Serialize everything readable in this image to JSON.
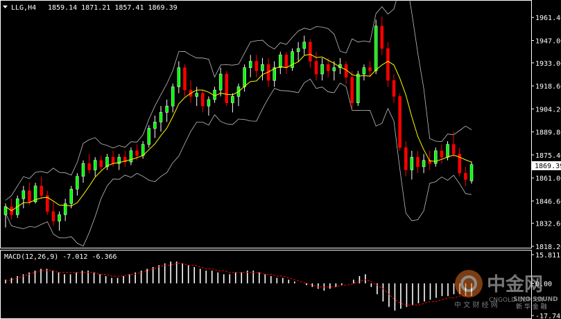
{
  "header": {
    "symbol_timeframe": "LLG,H4",
    "ohlc": "1859.14 1871.21 1857.41 1869.39"
  },
  "price_axis": {
    "ticks": [
      "1961.40",
      "1947.00",
      "1933.00",
      "1918.60",
      "1904.20",
      "1889.80",
      "1875.40",
      "1861.00",
      "1846.60",
      "1832.60",
      "1818.20"
    ],
    "current_price": "1869.39"
  },
  "macd": {
    "title": "MACD(12,26,9) -7.012 -6.366",
    "ticks": [
      "15.811",
      "0.00",
      "-17.745"
    ]
  },
  "watermark": {
    "brand": "中金网",
    "url": "CNGOLD.COM.CN",
    "tagline": "中 文 财 经 网",
    "logo_text": "SINO SOUND",
    "logo_sub": "新 华 金 融"
  },
  "colors": {
    "background": "#000000",
    "bull": "#ffffff",
    "bear": "#ff0000",
    "bull_body": "#00ff00",
    "ma": "#ffff00",
    "bollinger": "#c0c0c0",
    "macd_signal": "#ff0000",
    "grid": "#ffffff"
  },
  "chart_data": {
    "type": "candlestick",
    "ylim": [
      1818.2,
      1968
    ],
    "candles": [
      {
        "o": 1838,
        "h": 1845,
        "l": 1830,
        "c": 1843
      },
      {
        "o": 1843,
        "h": 1848,
        "l": 1835,
        "c": 1838
      },
      {
        "o": 1838,
        "h": 1850,
        "l": 1836,
        "c": 1848
      },
      {
        "o": 1848,
        "h": 1856,
        "l": 1842,
        "c": 1853
      },
      {
        "o": 1853,
        "h": 1858,
        "l": 1844,
        "c": 1846
      },
      {
        "o": 1846,
        "h": 1858,
        "l": 1845,
        "c": 1856
      },
      {
        "o": 1856,
        "h": 1862,
        "l": 1848,
        "c": 1850
      },
      {
        "o": 1850,
        "h": 1853,
        "l": 1838,
        "c": 1840
      },
      {
        "o": 1840,
        "h": 1846,
        "l": 1831,
        "c": 1834
      },
      {
        "o": 1834,
        "h": 1840,
        "l": 1828,
        "c": 1838
      },
      {
        "o": 1838,
        "h": 1848,
        "l": 1834,
        "c": 1845
      },
      {
        "o": 1845,
        "h": 1856,
        "l": 1842,
        "c": 1854
      },
      {
        "o": 1854,
        "h": 1864,
        "l": 1850,
        "c": 1862
      },
      {
        "o": 1862,
        "h": 1872,
        "l": 1858,
        "c": 1870
      },
      {
        "o": 1870,
        "h": 1876,
        "l": 1864,
        "c": 1866
      },
      {
        "o": 1866,
        "h": 1874,
        "l": 1862,
        "c": 1872
      },
      {
        "o": 1872,
        "h": 1875,
        "l": 1866,
        "c": 1868
      },
      {
        "o": 1868,
        "h": 1876,
        "l": 1866,
        "c": 1874
      },
      {
        "o": 1874,
        "h": 1878,
        "l": 1868,
        "c": 1870
      },
      {
        "o": 1870,
        "h": 1876,
        "l": 1866,
        "c": 1874
      },
      {
        "o": 1874,
        "h": 1878,
        "l": 1868,
        "c": 1871
      },
      {
        "o": 1871,
        "h": 1880,
        "l": 1869,
        "c": 1878
      },
      {
        "o": 1878,
        "h": 1882,
        "l": 1872,
        "c": 1875
      },
      {
        "o": 1875,
        "h": 1884,
        "l": 1873,
        "c": 1882
      },
      {
        "o": 1882,
        "h": 1894,
        "l": 1880,
        "c": 1892
      },
      {
        "o": 1892,
        "h": 1900,
        "l": 1886,
        "c": 1896
      },
      {
        "o": 1896,
        "h": 1906,
        "l": 1890,
        "c": 1902
      },
      {
        "o": 1902,
        "h": 1910,
        "l": 1896,
        "c": 1906
      },
      {
        "o": 1906,
        "h": 1920,
        "l": 1902,
        "c": 1918
      },
      {
        "o": 1918,
        "h": 1934,
        "l": 1914,
        "c": 1930
      },
      {
        "o": 1930,
        "h": 1932,
        "l": 1912,
        "c": 1916
      },
      {
        "o": 1916,
        "h": 1922,
        "l": 1908,
        "c": 1912
      },
      {
        "o": 1912,
        "h": 1918,
        "l": 1906,
        "c": 1914
      },
      {
        "o": 1914,
        "h": 1916,
        "l": 1902,
        "c": 1906
      },
      {
        "o": 1906,
        "h": 1912,
        "l": 1900,
        "c": 1910
      },
      {
        "o": 1910,
        "h": 1918,
        "l": 1908,
        "c": 1916
      },
      {
        "o": 1916,
        "h": 1930,
        "l": 1912,
        "c": 1926
      },
      {
        "o": 1926,
        "h": 1928,
        "l": 1906,
        "c": 1908
      },
      {
        "o": 1908,
        "h": 1914,
        "l": 1902,
        "c": 1912
      },
      {
        "o": 1912,
        "h": 1920,
        "l": 1906,
        "c": 1918
      },
      {
        "o": 1918,
        "h": 1932,
        "l": 1915,
        "c": 1930
      },
      {
        "o": 1930,
        "h": 1938,
        "l": 1924,
        "c": 1934
      },
      {
        "o": 1934,
        "h": 1938,
        "l": 1924,
        "c": 1928
      },
      {
        "o": 1928,
        "h": 1936,
        "l": 1922,
        "c": 1932
      },
      {
        "o": 1932,
        "h": 1936,
        "l": 1918,
        "c": 1922
      },
      {
        "o": 1922,
        "h": 1934,
        "l": 1918,
        "c": 1930
      },
      {
        "o": 1930,
        "h": 1940,
        "l": 1926,
        "c": 1938
      },
      {
        "o": 1938,
        "h": 1940,
        "l": 1926,
        "c": 1930
      },
      {
        "o": 1930,
        "h": 1942,
        "l": 1928,
        "c": 1940
      },
      {
        "o": 1940,
        "h": 1946,
        "l": 1934,
        "c": 1942
      },
      {
        "o": 1942,
        "h": 1950,
        "l": 1938,
        "c": 1946
      },
      {
        "o": 1946,
        "h": 1948,
        "l": 1930,
        "c": 1934
      },
      {
        "o": 1934,
        "h": 1940,
        "l": 1922,
        "c": 1926
      },
      {
        "o": 1926,
        "h": 1936,
        "l": 1922,
        "c": 1932
      },
      {
        "o": 1932,
        "h": 1936,
        "l": 1924,
        "c": 1928
      },
      {
        "o": 1928,
        "h": 1934,
        "l": 1922,
        "c": 1930
      },
      {
        "o": 1930,
        "h": 1936,
        "l": 1926,
        "c": 1932
      },
      {
        "o": 1932,
        "h": 1934,
        "l": 1920,
        "c": 1924
      },
      {
        "o": 1924,
        "h": 1928,
        "l": 1904,
        "c": 1908
      },
      {
        "o": 1908,
        "h": 1928,
        "l": 1906,
        "c": 1926
      },
      {
        "o": 1926,
        "h": 1932,
        "l": 1922,
        "c": 1930
      },
      {
        "o": 1930,
        "h": 1934,
        "l": 1924,
        "c": 1928
      },
      {
        "o": 1928,
        "h": 1960,
        "l": 1926,
        "c": 1956
      },
      {
        "o": 1956,
        "h": 1962,
        "l": 1938,
        "c": 1942
      },
      {
        "o": 1942,
        "h": 1946,
        "l": 1918,
        "c": 1922
      },
      {
        "o": 1922,
        "h": 1926,
        "l": 1908,
        "c": 1912
      },
      {
        "o": 1912,
        "h": 1914,
        "l": 1878,
        "c": 1880
      },
      {
        "o": 1880,
        "h": 1884,
        "l": 1862,
        "c": 1866
      },
      {
        "o": 1866,
        "h": 1878,
        "l": 1860,
        "c": 1874
      },
      {
        "o": 1874,
        "h": 1878,
        "l": 1864,
        "c": 1868
      },
      {
        "o": 1868,
        "h": 1876,
        "l": 1864,
        "c": 1872
      },
      {
        "o": 1872,
        "h": 1878,
        "l": 1866,
        "c": 1870
      },
      {
        "o": 1870,
        "h": 1880,
        "l": 1868,
        "c": 1878
      },
      {
        "o": 1878,
        "h": 1882,
        "l": 1870,
        "c": 1874
      },
      {
        "o": 1874,
        "h": 1884,
        "l": 1872,
        "c": 1882
      },
      {
        "o": 1882,
        "h": 1890,
        "l": 1874,
        "c": 1876
      },
      {
        "o": 1876,
        "h": 1880,
        "l": 1862,
        "c": 1864
      },
      {
        "o": 1864,
        "h": 1868,
        "l": 1856,
        "c": 1860
      },
      {
        "o": 1859.14,
        "h": 1871.21,
        "l": 1857.41,
        "c": 1869.39
      }
    ],
    "macd_ylim": [
      -17.745,
      15.811
    ],
    "macd_histogram": [
      2,
      3,
      4,
      5,
      6,
      7,
      8,
      8,
      7,
      6,
      5,
      5,
      6,
      7,
      7,
      6,
      5,
      4,
      3,
      3,
      4,
      5,
      6,
      7,
      8,
      9,
      10,
      11,
      12,
      12,
      11,
      10,
      9,
      8,
      7,
      7,
      6,
      5,
      5,
      6,
      6,
      7,
      7,
      6,
      5,
      4,
      3,
      3,
      2,
      1,
      0,
      -1,
      -2,
      -3,
      -4,
      -3,
      -2,
      -1,
      0,
      2,
      4,
      5,
      -2,
      -6,
      -10,
      -13,
      -15,
      -14,
      -13,
      -12,
      -11,
      -10,
      -9,
      -8,
      -7,
      -7,
      -6,
      -6,
      -7,
      -7
    ],
    "macd_signal": [
      1,
      2,
      3,
      4,
      5,
      6,
      7,
      7,
      7,
      6,
      6,
      6,
      6,
      6,
      6,
      6,
      5,
      5,
      4,
      4,
      4,
      5,
      5,
      6,
      7,
      8,
      9,
      10,
      10,
      11,
      11,
      10,
      10,
      9,
      8,
      8,
      7,
      7,
      6,
      6,
      6,
      6,
      6,
      6,
      5,
      5,
      4,
      4,
      3,
      2,
      1,
      0,
      -1,
      -2,
      -2,
      -2,
      -2,
      -1,
      -1,
      0,
      1,
      2,
      1,
      -1,
      -3,
      -6,
      -9,
      -11,
      -12,
      -12,
      -12,
      -11,
      -10,
      -10,
      -9,
      -8,
      -8,
      -7,
      -7,
      -6.4
    ]
  }
}
